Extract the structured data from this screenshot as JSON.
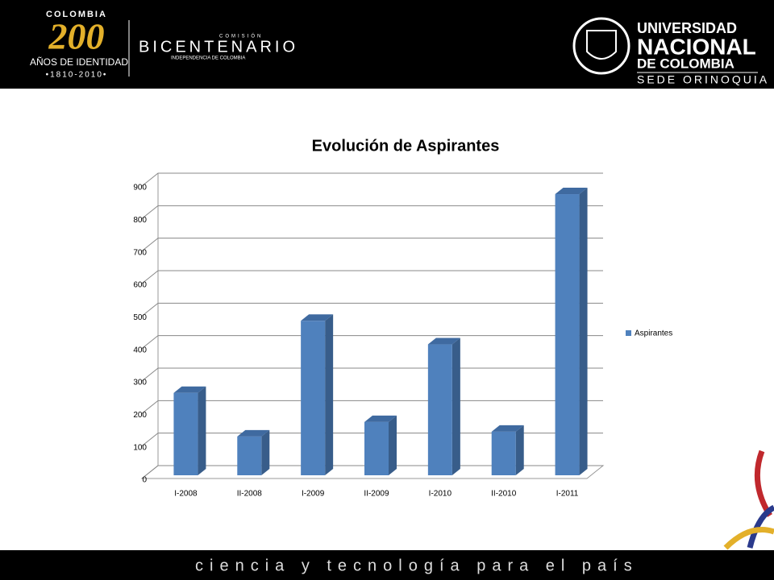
{
  "header": {
    "left_logo": {
      "country": "COLOMBIA",
      "number": "200",
      "subtitle": "AÑOS DE IDENTIDAD",
      "years": "•1810-2010•"
    },
    "commission": {
      "label": "COMISIÓN",
      "name": "BICENTENARIO",
      "subtitle": "INDEPENDENCIA DE COLOMBIA"
    },
    "university": {
      "line1": "UNIVERSIDAD",
      "line2": "NACIONAL",
      "line3": "DE COLOMBIA",
      "campus": "SEDE ORINOQUIA"
    }
  },
  "chart_data": {
    "type": "bar3d",
    "title": "Evolución de Aspirantes",
    "categories": [
      "I-2008",
      "II-2008",
      "I-2009",
      "II-2009",
      "I-2010",
      "II-2010",
      "I-2011"
    ],
    "series": [
      {
        "name": "Aspirantes",
        "color": "#4f81bd",
        "values": [
          255,
          120,
          478,
          165,
          405,
          135,
          870
        ]
      }
    ],
    "ylim": [
      0,
      900
    ],
    "yticks": [
      0,
      100,
      200,
      300,
      400,
      500,
      600,
      700,
      800,
      900
    ],
    "grid": true,
    "legend": "right"
  },
  "footer": {
    "slogan": "ciencia y tecnología para el país"
  }
}
